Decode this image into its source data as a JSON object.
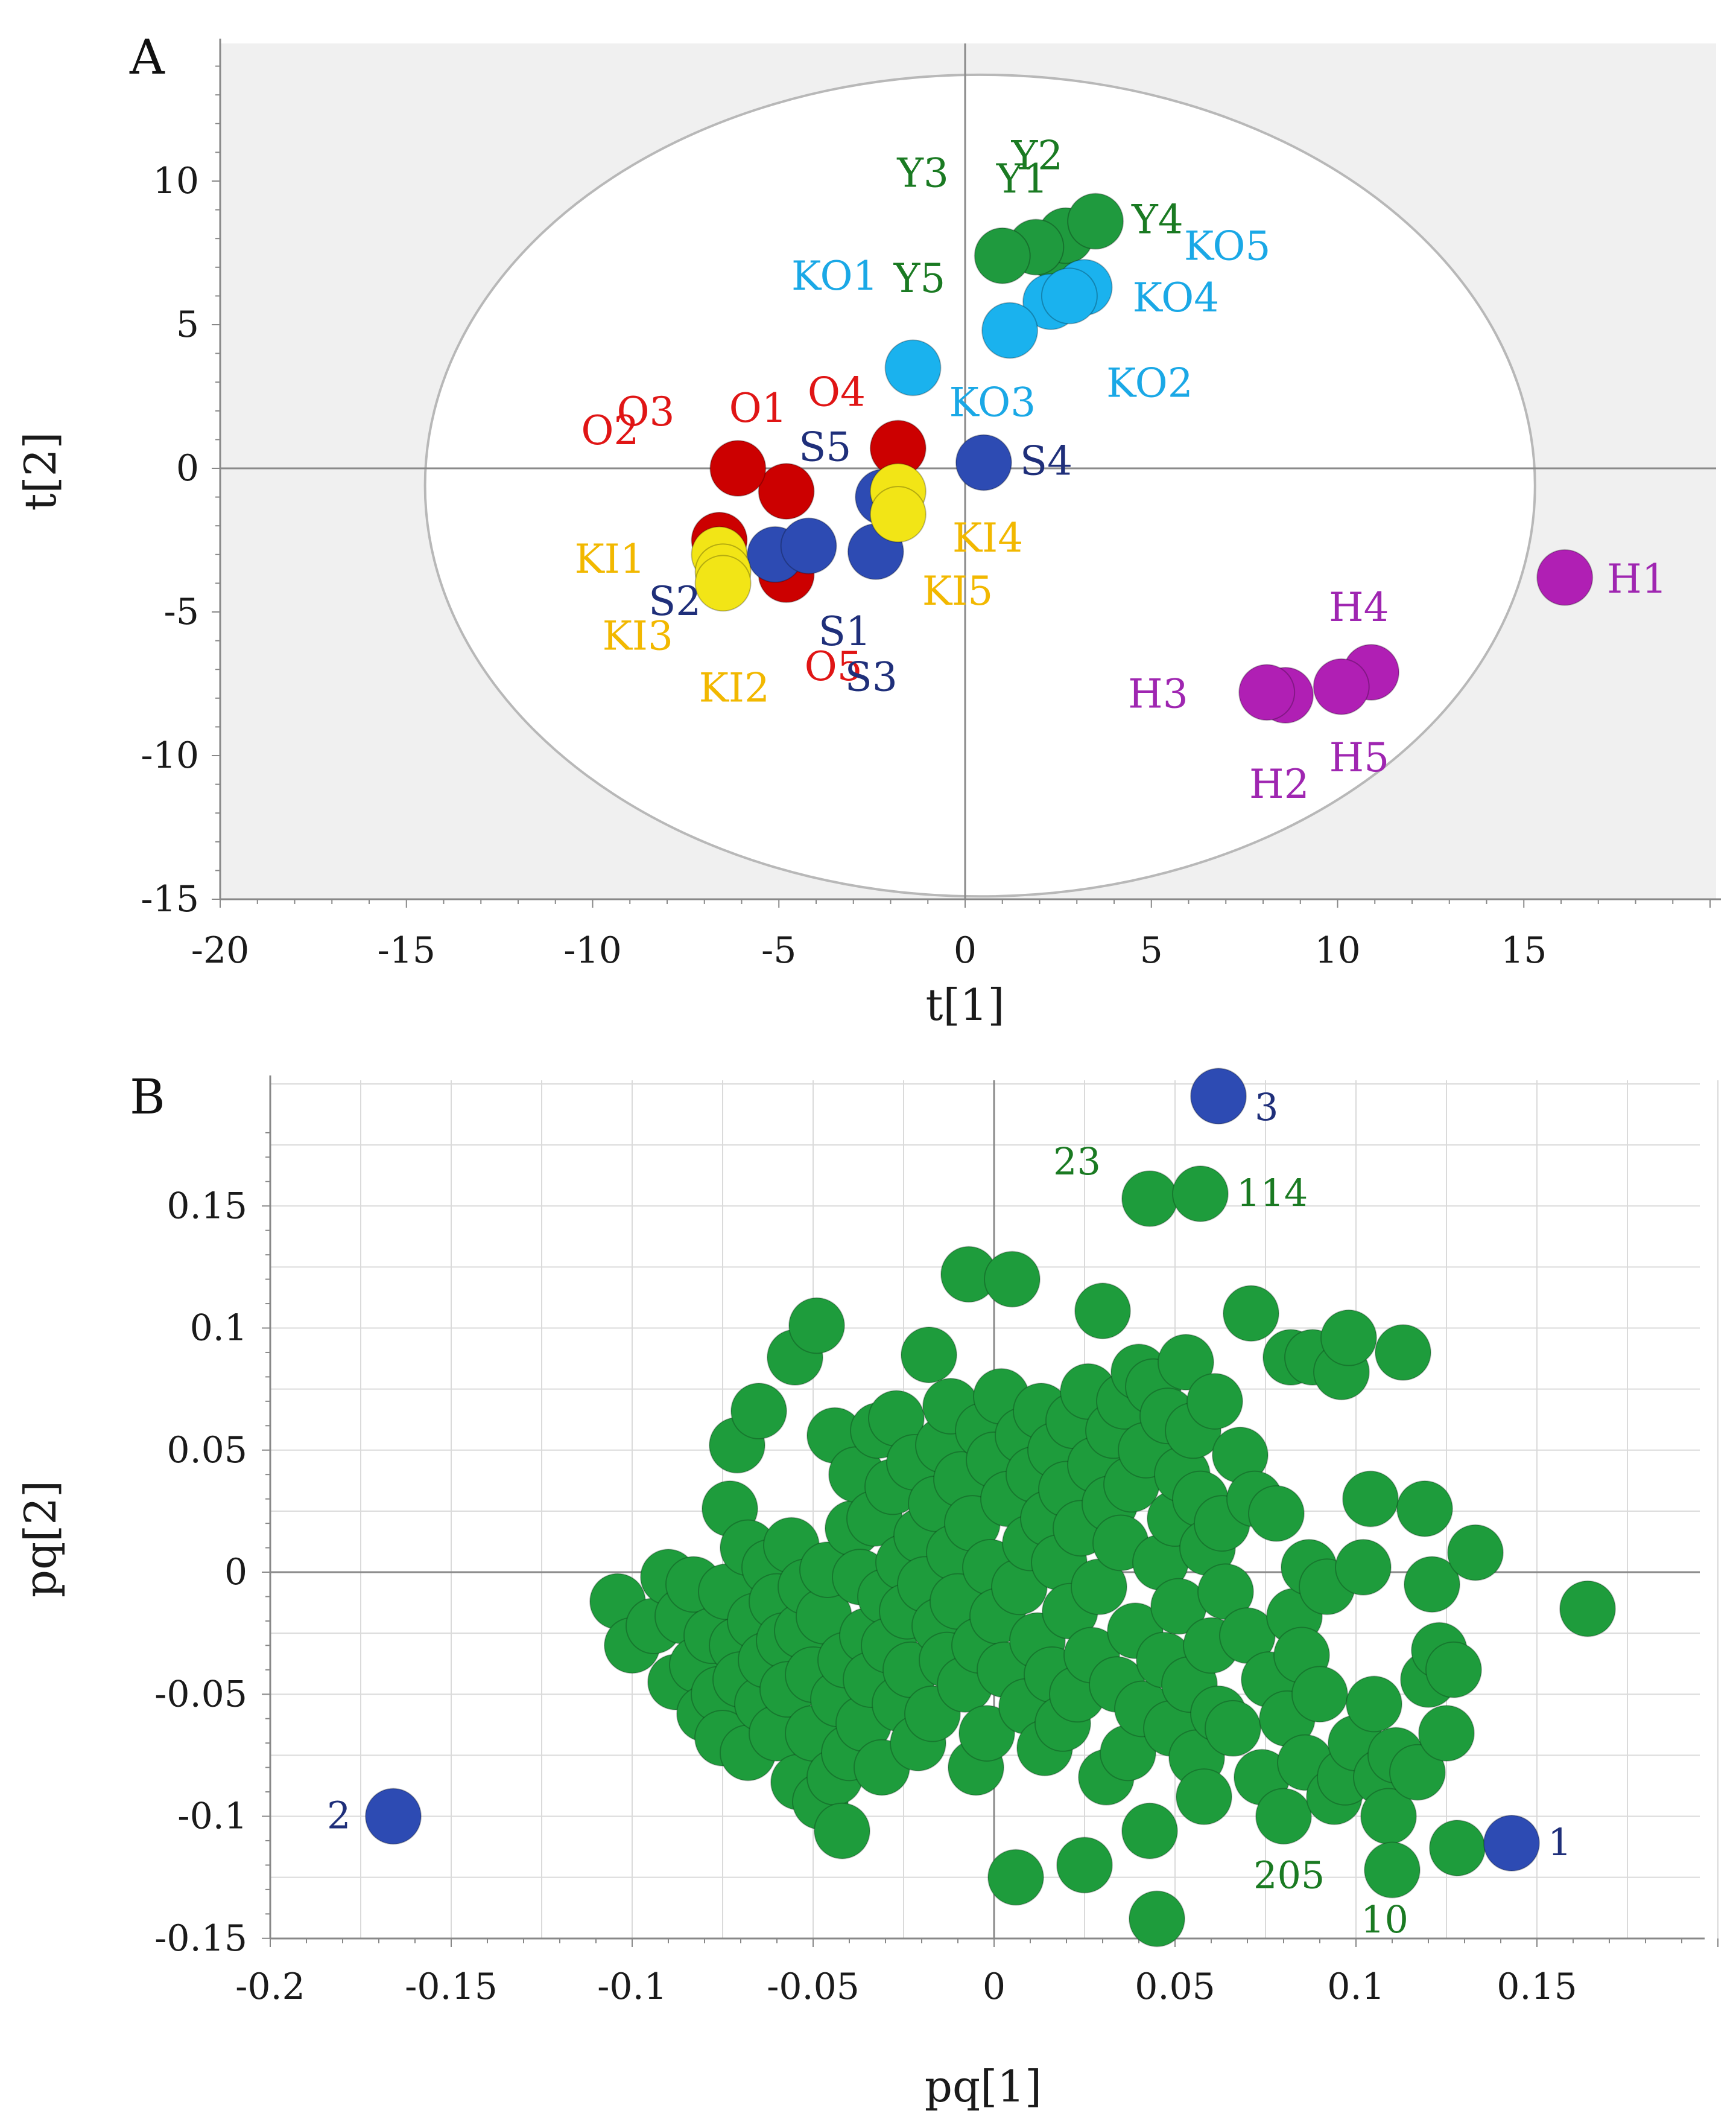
{
  "chart_data": [
    {
      "panel": "A",
      "type": "scatter",
      "xlabel": "t[1]",
      "ylabel": "t[2]",
      "xlim": [
        -20,
        20
      ],
      "ylim": [
        -15,
        15
      ],
      "xticks": [
        "-20",
        "-15",
        "-10",
        "-5",
        "0",
        "5",
        "10",
        "15"
      ],
      "xtick_values": [
        -20,
        -15,
        -10,
        -5,
        0,
        5,
        10,
        15
      ],
      "yticks": [
        "10",
        "5",
        "0",
        "-5",
        "-10",
        "-15"
      ],
      "ytick_values": [
        10,
        5,
        0,
        -5,
        -10,
        -15
      ],
      "ellipse": {
        "cx": 0.4,
        "cy": -0.6,
        "rx": 14.9,
        "ry": 14.3,
        "shape": "hotelling-t2"
      },
      "grid": false,
      "background": "#f0f0f0",
      "series": [
        {
          "group": "Y",
          "color": "#1f9a3e",
          "label_color": "#1a7a22",
          "points": [
            {
              "label": "Y1",
              "x": 2.3,
              "y": 7.6
            },
            {
              "label": "Y2",
              "x": 2.7,
              "y": 8.1
            },
            {
              "label": "Y3",
              "x": 1.9,
              "y": 7.7
            },
            {
              "label": "Y4",
              "x": 3.5,
              "y": 8.6
            },
            {
              "label": "Y5",
              "x": 1.0,
              "y": 7.4
            }
          ]
        },
        {
          "group": "KO",
          "color": "#1ab2ee",
          "label_color": "#1aa8e6",
          "points": [
            {
              "label": "KO1",
              "x": 2.3,
              "y": 5.8
            },
            {
              "label": "KO2",
              "x": 1.2,
              "y": 4.8
            },
            {
              "label": "KO3",
              "x": -1.4,
              "y": 3.5
            },
            {
              "label": "KO4",
              "x": 3.2,
              "y": 6.3
            },
            {
              "label": "KO5",
              "x": 2.8,
              "y": 6.0
            }
          ]
        },
        {
          "group": "O",
          "color": "#cc0000",
          "label_color": "#e01515",
          "points": [
            {
              "label": "O1",
              "x": -4.8,
              "y": -0.8
            },
            {
              "label": "O2",
              "x": -6.1,
              "y": 0.0
            },
            {
              "label": "O3",
              "x": -6.6,
              "y": -2.5
            },
            {
              "label": "O4",
              "x": -1.8,
              "y": 0.7
            },
            {
              "label": "O5",
              "x": -4.8,
              "y": -3.7
            }
          ]
        },
        {
          "group": "S",
          "color": "#2d4bb3",
          "label_color": "#1f2f7a",
          "points": [
            {
              "label": "S1",
              "x": -2.4,
              "y": -2.9
            },
            {
              "label": "S2",
              "x": -5.1,
              "y": -3.0
            },
            {
              "label": "S3",
              "x": -4.2,
              "y": -2.7
            },
            {
              "label": "S4",
              "x": 0.5,
              "y": 0.2
            },
            {
              "label": "S5",
              "x": -2.2,
              "y": -1.0
            }
          ]
        },
        {
          "group": "KI",
          "color": "#f2e516",
          "label_color": "#f2b800",
          "points": [
            {
              "label": "KI1",
              "x": -6.6,
              "y": -3.0
            },
            {
              "label": "KI2",
              "x": -6.5,
              "y": -3.6
            },
            {
              "label": "KI3",
              "x": -6.5,
              "y": -4.0
            },
            {
              "label": "KI4",
              "x": -1.8,
              "y": -0.8
            },
            {
              "label": "KI5",
              "x": -1.8,
              "y": -1.6
            }
          ]
        },
        {
          "group": "H",
          "color": "#b01fb4",
          "label_color": "#9f26b1",
          "points": [
            {
              "label": "H1",
              "x": 16.1,
              "y": -3.8
            },
            {
              "label": "H2",
              "x": 8.6,
              "y": -7.9
            },
            {
              "label": "H3",
              "x": 8.1,
              "y": -7.8
            },
            {
              "label": "H4",
              "x": 10.9,
              "y": -7.1
            },
            {
              "label": "H5",
              "x": 10.1,
              "y": -7.6
            }
          ]
        }
      ]
    },
    {
      "panel": "B",
      "type": "scatter",
      "xlabel": "pq[1]",
      "ylabel": "pq[2]",
      "xlim": [
        -0.2,
        0.2
      ],
      "ylim": [
        -0.15,
        0.2
      ],
      "xticks": [
        "-0.2",
        "-0.15",
        "-0.1",
        "-0.05",
        "0",
        "0.05",
        "0.1",
        "0.15"
      ],
      "xtick_values": [
        -0.2,
        -0.15,
        -0.1,
        -0.05,
        0,
        0.05,
        0.1,
        0.15
      ],
      "yticks": [
        "0.15",
        "0.1",
        "0.05",
        "0",
        "-0.05",
        "-0.1",
        "-0.15"
      ],
      "ytick_values": [
        0.15,
        0.1,
        0.05,
        0,
        -0.05,
        -0.1,
        -0.15
      ],
      "grid": true,
      "variable_color": "#1e9c3c",
      "highlight_color": "#2d4bb3",
      "highlighted": [
        {
          "label": "1",
          "x": 0.143,
          "y": -0.111
        },
        {
          "label": "2",
          "x": -0.166,
          "y": -0.1
        },
        {
          "label": "3",
          "x": 0.062,
          "y": 0.195
        }
      ],
      "labeled_variables": [
        {
          "label": "23",
          "x": 0.043,
          "y": 0.153
        },
        {
          "label": "114",
          "x": 0.057,
          "y": 0.155
        },
        {
          "label": "205",
          "x": 0.11,
          "y": -0.122
        },
        {
          "label": "10",
          "x": 0.128,
          "y": -0.113
        }
      ],
      "variables": [
        [
          -0.104,
          -0.012
        ],
        [
          -0.1,
          -0.03
        ],
        [
          -0.094,
          -0.022
        ],
        [
          -0.09,
          -0.002
        ],
        [
          -0.088,
          -0.045
        ],
        [
          -0.086,
          -0.018
        ],
        [
          -0.083,
          -0.005
        ],
        [
          -0.082,
          -0.038
        ],
        [
          -0.08,
          -0.058
        ],
        [
          -0.078,
          -0.026
        ],
        [
          -0.076,
          -0.05
        ],
        [
          -0.075,
          -0.068
        ],
        [
          -0.074,
          -0.008
        ],
        [
          -0.073,
          0.026
        ],
        [
          -0.071,
          -0.03
        ],
        [
          -0.071,
          0.052
        ],
        [
          -0.07,
          -0.044
        ],
        [
          -0.068,
          -0.074
        ],
        [
          -0.068,
          0.01
        ],
        [
          -0.066,
          -0.02
        ],
        [
          -0.065,
          0.066
        ],
        [
          -0.064,
          -0.054
        ],
        [
          -0.063,
          -0.036
        ],
        [
          -0.062,
          0.002
        ],
        [
          -0.06,
          -0.012
        ],
        [
          -0.06,
          -0.066
        ],
        [
          -0.058,
          -0.028
        ],
        [
          -0.057,
          -0.048
        ],
        [
          -0.056,
          0.011
        ],
        [
          -0.055,
          0.088
        ],
        [
          -0.054,
          -0.086
        ],
        [
          -0.053,
          -0.024
        ],
        [
          -0.052,
          -0.006
        ],
        [
          -0.05,
          -0.066
        ],
        [
          -0.05,
          -0.042
        ],
        [
          -0.049,
          0.101
        ],
        [
          -0.048,
          -0.094
        ],
        [
          -0.047,
          -0.018
        ],
        [
          -0.046,
          0.001
        ],
        [
          -0.044,
          -0.084
        ],
        [
          -0.044,
          0.056
        ],
        [
          -0.043,
          -0.052
        ],
        [
          -0.042,
          -0.106
        ],
        [
          -0.041,
          -0.036
        ],
        [
          -0.04,
          -0.074
        ],
        [
          -0.039,
          0.018
        ],
        [
          -0.038,
          0.04
        ],
        [
          -0.037,
          -0.002
        ],
        [
          -0.036,
          -0.062
        ],
        [
          -0.035,
          -0.026
        ],
        [
          -0.034,
          -0.044
        ],
        [
          -0.033,
          0.022
        ],
        [
          -0.032,
          0.058
        ],
        [
          -0.031,
          -0.08
        ],
        [
          -0.03,
          -0.01
        ],
        [
          -0.029,
          -0.03
        ],
        [
          -0.028,
          0.035
        ],
        [
          -0.027,
          0.063
        ],
        [
          -0.026,
          -0.054
        ],
        [
          -0.025,
          0.004
        ],
        [
          -0.024,
          -0.016
        ],
        [
          -0.023,
          -0.04
        ],
        [
          -0.022,
          0.045
        ],
        [
          -0.021,
          -0.07
        ],
        [
          -0.02,
          0.015
        ],
        [
          -0.019,
          -0.005
        ],
        [
          -0.018,
          0.089
        ],
        [
          -0.017,
          -0.058
        ],
        [
          -0.016,
          0.028
        ],
        [
          -0.015,
          -0.022
        ],
        [
          -0.014,
          0.052
        ],
        [
          -0.013,
          -0.036
        ],
        [
          -0.012,
          0.068
        ],
        [
          -0.011,
          0.008
        ],
        [
          -0.01,
          -0.012
        ],
        [
          -0.009,
          0.038
        ],
        [
          -0.008,
          -0.046
        ],
        [
          -0.007,
          0.122
        ],
        [
          -0.006,
          0.02
        ],
        [
          -0.005,
          -0.08
        ],
        [
          -0.004,
          -0.03
        ],
        [
          -0.003,
          0.058
        ],
        [
          -0.002,
          -0.066
        ],
        [
          -0.001,
          0.002
        ],
        [
          0.0,
          0.046
        ],
        [
          0.001,
          -0.018
        ],
        [
          0.002,
          0.072
        ],
        [
          0.003,
          -0.04
        ],
        [
          0.004,
          0.03
        ],
        [
          0.005,
          0.12
        ],
        [
          0.006,
          -0.125
        ],
        [
          0.007,
          -0.006
        ],
        [
          0.008,
          0.056
        ],
        [
          0.009,
          -0.055
        ],
        [
          0.01,
          0.012
        ],
        [
          0.011,
          0.04
        ],
        [
          0.012,
          -0.028
        ],
        [
          0.013,
          0.066
        ],
        [
          0.014,
          -0.072
        ],
        [
          0.015,
          0.022
        ],
        [
          0.016,
          -0.042
        ],
        [
          0.017,
          0.05
        ],
        [
          0.018,
          0.004
        ],
        [
          0.019,
          -0.062
        ],
        [
          0.02,
          0.034
        ],
        [
          0.021,
          -0.016
        ],
        [
          0.022,
          0.062
        ],
        [
          0.023,
          -0.05
        ],
        [
          0.024,
          0.018
        ],
        [
          0.025,
          -0.12
        ],
        [
          0.026,
          0.074
        ],
        [
          0.027,
          -0.034
        ],
        [
          0.028,
          0.044
        ],
        [
          0.029,
          -0.006
        ],
        [
          0.03,
          0.107
        ],
        [
          0.031,
          -0.084
        ],
        [
          0.032,
          0.028
        ],
        [
          0.033,
          0.058
        ],
        [
          0.034,
          -0.046
        ],
        [
          0.035,
          0.012
        ],
        [
          0.036,
          0.07
        ],
        [
          0.037,
          -0.074
        ],
        [
          0.038,
          0.036
        ],
        [
          0.039,
          -0.024
        ],
        [
          0.04,
          0.082
        ],
        [
          0.041,
          -0.056
        ],
        [
          0.042,
          0.05
        ],
        [
          0.043,
          -0.106
        ],
        [
          0.044,
          0.076
        ],
        [
          0.045,
          -0.142
        ],
        [
          0.046,
          0.004
        ],
        [
          0.047,
          -0.036
        ],
        [
          0.048,
          0.064
        ],
        [
          0.049,
          -0.064
        ],
        [
          0.05,
          0.022
        ],
        [
          0.051,
          -0.014
        ],
        [
          0.052,
          0.04
        ],
        [
          0.053,
          0.086
        ],
        [
          0.054,
          -0.046
        ],
        [
          0.055,
          0.058
        ],
        [
          0.056,
          -0.076
        ],
        [
          0.057,
          0.03
        ],
        [
          0.058,
          -0.092
        ],
        [
          0.059,
          0.01
        ],
        [
          0.06,
          -0.03
        ],
        [
          0.061,
          0.07
        ],
        [
          0.062,
          -0.058
        ],
        [
          0.063,
          0.02
        ],
        [
          0.064,
          -0.008
        ],
        [
          0.066,
          -0.064
        ],
        [
          0.068,
          0.048
        ],
        [
          0.07,
          -0.026
        ],
        [
          0.071,
          0.106
        ],
        [
          0.072,
          0.03
        ],
        [
          0.074,
          -0.084
        ],
        [
          0.076,
          -0.044
        ],
        [
          0.078,
          0.024
        ],
        [
          0.08,
          -0.1
        ],
        [
          0.081,
          -0.06
        ],
        [
          0.082,
          0.088
        ],
        [
          0.083,
          -0.018
        ],
        [
          0.085,
          -0.034
        ],
        [
          0.086,
          -0.078
        ],
        [
          0.087,
          0.002
        ],
        [
          0.088,
          0.088
        ],
        [
          0.09,
          -0.05
        ],
        [
          0.092,
          -0.006
        ],
        [
          0.094,
          -0.092
        ],
        [
          0.096,
          0.082
        ],
        [
          0.097,
          -0.084
        ],
        [
          0.098,
          0.096
        ],
        [
          0.1,
          -0.07
        ],
        [
          0.102,
          0.002
        ],
        [
          0.104,
          0.03
        ],
        [
          0.105,
          -0.054
        ],
        [
          0.107,
          -0.084
        ],
        [
          0.109,
          -0.1
        ],
        [
          0.111,
          -0.075
        ],
        [
          0.113,
          0.09
        ],
        [
          0.117,
          -0.082
        ],
        [
          0.119,
          0.026
        ],
        [
          0.12,
          -0.044
        ],
        [
          0.121,
          -0.005
        ],
        [
          0.123,
          -0.032
        ],
        [
          0.125,
          -0.066
        ],
        [
          0.127,
          -0.04
        ],
        [
          0.133,
          0.008
        ],
        [
          0.164,
          -0.015
        ]
      ]
    }
  ]
}
